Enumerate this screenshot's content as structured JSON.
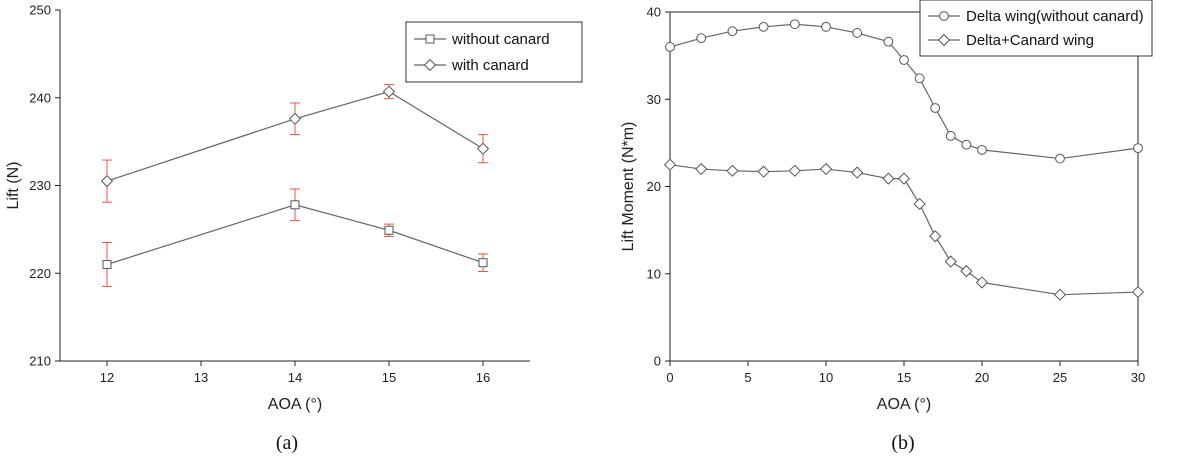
{
  "chart_data": [
    {
      "type": "line",
      "panel_label": "(a)",
      "xlabel": "AOA (°)",
      "ylabel": "Lift (N)",
      "xlim": [
        11.5,
        16.5
      ],
      "ylim": [
        210,
        250
      ],
      "xticks": [
        12,
        13,
        14,
        15,
        16
      ],
      "yticks": [
        210,
        220,
        230,
        240,
        250
      ],
      "legend_position": "top-right",
      "error_bar_color": "#e8554e",
      "series": [
        {
          "name": "without canard",
          "marker": "square",
          "x": [
            12,
            14,
            15,
            16
          ],
          "y": [
            221.0,
            227.8,
            224.9,
            221.2
          ],
          "err": [
            2.5,
            1.8,
            0.7,
            1.0
          ]
        },
        {
          "name": "with canard",
          "marker": "diamond",
          "x": [
            12,
            14,
            15,
            16
          ],
          "y": [
            230.5,
            237.6,
            240.7,
            234.2
          ],
          "err": [
            2.4,
            1.8,
            0.8,
            1.6
          ]
        }
      ]
    },
    {
      "type": "line",
      "panel_label": "(b)",
      "xlabel": "AOA (°)",
      "ylabel": "Lift Moment (N*m)",
      "xlim": [
        0,
        30
      ],
      "ylim": [
        0,
        40
      ],
      "xticks": [
        0,
        5,
        10,
        15,
        20,
        25,
        30
      ],
      "yticks": [
        0,
        10,
        20,
        30,
        40
      ],
      "legend_position": "top-right",
      "series": [
        {
          "name": "Delta wing(without canard)",
          "marker": "circle",
          "x": [
            0,
            2,
            4,
            6,
            8,
            10,
            12,
            14,
            15,
            16,
            17,
            18,
            19,
            20,
            25,
            30
          ],
          "y": [
            36.0,
            37.0,
            37.8,
            38.3,
            38.6,
            38.3,
            37.6,
            36.6,
            34.5,
            32.4,
            29.0,
            25.8,
            24.8,
            24.2,
            23.2,
            24.4
          ]
        },
        {
          "name": "Delta+Canard wing",
          "marker": "diamond",
          "x": [
            0,
            2,
            4,
            6,
            8,
            10,
            12,
            14,
            15,
            16,
            17,
            18,
            19,
            20,
            25,
            30
          ],
          "y": [
            22.5,
            22.0,
            21.8,
            21.7,
            21.8,
            22.0,
            21.6,
            20.9,
            20.9,
            18.0,
            14.3,
            11.4,
            10.3,
            9.0,
            7.6,
            7.9
          ]
        }
      ]
    }
  ]
}
